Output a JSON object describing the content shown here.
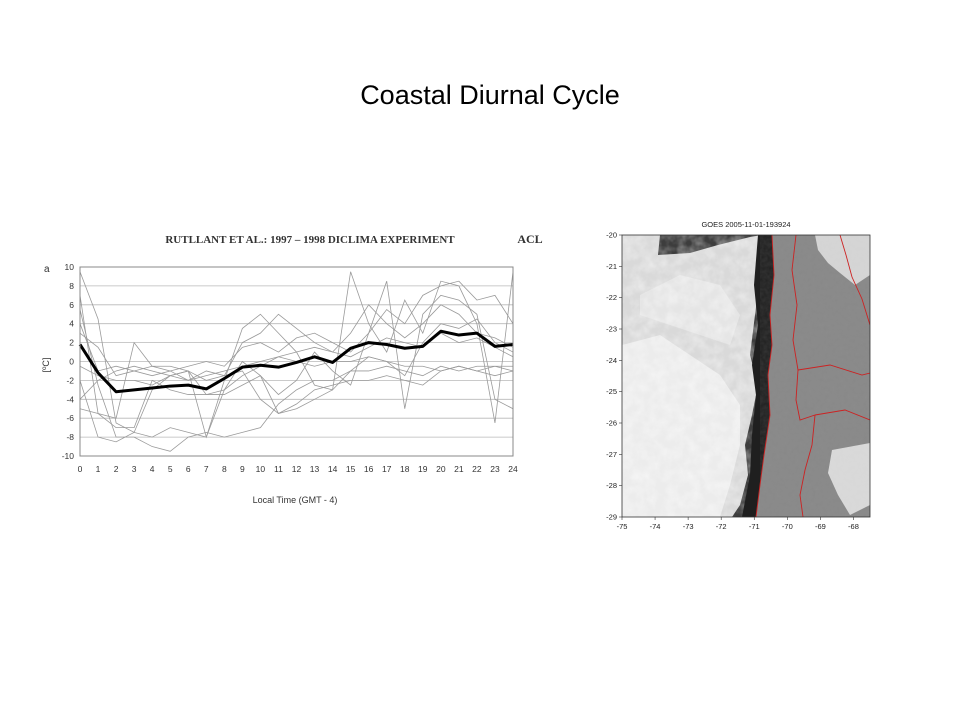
{
  "slide": {
    "title": "Coastal Diurnal Cycle"
  },
  "chart_data": [
    {
      "type": "line",
      "title": "RUTLLANT ET AL.: 1997 – 1998 DICLIMA EXPERIMENT",
      "station": "ACL",
      "panel_label": "a",
      "xlabel": "Local Time  (GMT - 4)",
      "ylabel": "[ºC]",
      "xlim": [
        0,
        24
      ],
      "ylim": [
        -10,
        10
      ],
      "x_ticks": [
        0,
        1,
        2,
        3,
        4,
        5,
        6,
        7,
        8,
        9,
        10,
        11,
        12,
        13,
        14,
        15,
        16,
        17,
        18,
        19,
        20,
        21,
        22,
        23,
        24
      ],
      "y_ticks": [
        10,
        8,
        6,
        4,
        2,
        0,
        -2,
        -4,
        -6,
        -8,
        -10
      ],
      "grid": true,
      "x": [
        0,
        1,
        2,
        3,
        4,
        5,
        6,
        7,
        8,
        9,
        10,
        11,
        12,
        13,
        14,
        15,
        16,
        17,
        18,
        19,
        20,
        21,
        22,
        23,
        24
      ],
      "mean": [
        1.8,
        -1.2,
        -3.2,
        -3.0,
        -2.8,
        -2.6,
        -2.5,
        -2.9,
        -1.8,
        -0.6,
        -0.4,
        -0.6,
        -0.1,
        0.5,
        -0.1,
        1.4,
        2.0,
        1.8,
        1.4,
        1.6,
        3.2,
        2.8,
        3.0,
        1.6,
        1.8
      ],
      "thin_series": [
        [
          9.5,
          4.5,
          -6.5,
          -7.5,
          -3.0,
          -1.5,
          -1.0,
          -8.0,
          -2.0,
          3.5,
          5.0,
          3.0,
          1.0,
          -2.5,
          -3.0,
          9.5,
          4.0,
          1.0,
          6.5,
          3.0,
          8.5,
          8.0,
          4.0,
          -6.5,
          9.5
        ],
        [
          7.0,
          -5.5,
          -7.0,
          -7.0,
          -2.0,
          -3.0,
          -3.5,
          -3.5,
          -3.5,
          -2.5,
          -1.5,
          -3.5,
          -2.0,
          1.0,
          -1.0,
          -2.5,
          3.0,
          8.5,
          -5.0,
          5.0,
          7.0,
          6.5,
          5.0,
          -4.0,
          -5.0
        ],
        [
          5.5,
          -2.5,
          -8.0,
          -8.0,
          -9.0,
          -9.5,
          -8.0,
          -7.5,
          -8.0,
          -7.5,
          -7.0,
          -4.5,
          -3.0,
          -2.0,
          -2.0,
          -1.0,
          -1.0,
          -0.5,
          -1.0,
          -1.5,
          -0.5,
          -1.0,
          -0.5,
          -0.5,
          -1.0
        ],
        [
          4.0,
          -1.0,
          -0.5,
          -1.0,
          -0.5,
          -0.5,
          -1.0,
          -2.0,
          -1.5,
          -1.0,
          -4.0,
          -5.5,
          -4.5,
          -3.0,
          -2.5,
          -2.0,
          -2.0,
          -1.5,
          -2.0,
          -2.5,
          -1.0,
          -0.5,
          -1.0,
          -1.5,
          -1.0
        ],
        [
          -0.5,
          -1.5,
          -2.0,
          -2.0,
          -2.5,
          -1.5,
          -2.0,
          -1.5,
          -1.0,
          -0.5,
          0.0,
          0.5,
          0.0,
          -0.5,
          0.0,
          0.0,
          0.5,
          0.0,
          -0.5,
          -0.5,
          -1.0,
          -0.5,
          -1.0,
          -0.5,
          -0.5
        ],
        [
          3.0,
          1.5,
          -1.5,
          -1.0,
          -1.5,
          -1.0,
          -0.5,
          0.0,
          -0.5,
          1.5,
          2.0,
          1.0,
          2.5,
          3.0,
          2.0,
          1.0,
          3.0,
          5.5,
          4.0,
          7.0,
          8.0,
          8.5,
          6.5,
          7.0,
          4.0
        ],
        [
          -5.0,
          -5.5,
          -6.0,
          2.0,
          -0.5,
          -1.0,
          -2.0,
          -1.0,
          -1.5,
          2.0,
          3.0,
          5.0,
          3.5,
          2.0,
          1.0,
          3.0,
          6.0,
          4.0,
          2.5,
          4.0,
          6.0,
          5.0,
          3.0,
          2.5,
          1.5
        ],
        [
          -2.0,
          -8.0,
          -8.5,
          -7.5,
          -8.0,
          -7.0,
          -7.5,
          -8.0,
          -3.0,
          0.0,
          -1.5,
          -5.5,
          -5.0,
          -4.0,
          -3.0,
          -1.0,
          0.5,
          0.0,
          -1.5,
          2.0,
          4.0,
          3.5,
          4.5,
          2.0,
          1.0
        ],
        [
          -4.0,
          -2.0,
          -1.0,
          -0.5,
          -1.0,
          -1.5,
          -1.0,
          -3.5,
          -3.0,
          -1.5,
          -0.5,
          0.5,
          1.0,
          1.5,
          1.0,
          0.5,
          1.5,
          2.5,
          2.0,
          1.5,
          3.0,
          2.0,
          2.5,
          1.5,
          0.5
        ]
      ]
    },
    {
      "type": "heatmap",
      "title": "GOES 2005-11-01-193924",
      "xlim": [
        -75,
        -67.5
      ],
      "ylim": [
        -29,
        -20
      ],
      "x_ticks": [
        -75,
        -74,
        -73,
        -72,
        -71,
        -70,
        -69,
        -68
      ],
      "y_ticks": [
        -20,
        -21,
        -22,
        -23,
        -24,
        -25,
        -26,
        -27,
        -28,
        -29
      ],
      "border_color": "#cc2222"
    }
  ]
}
